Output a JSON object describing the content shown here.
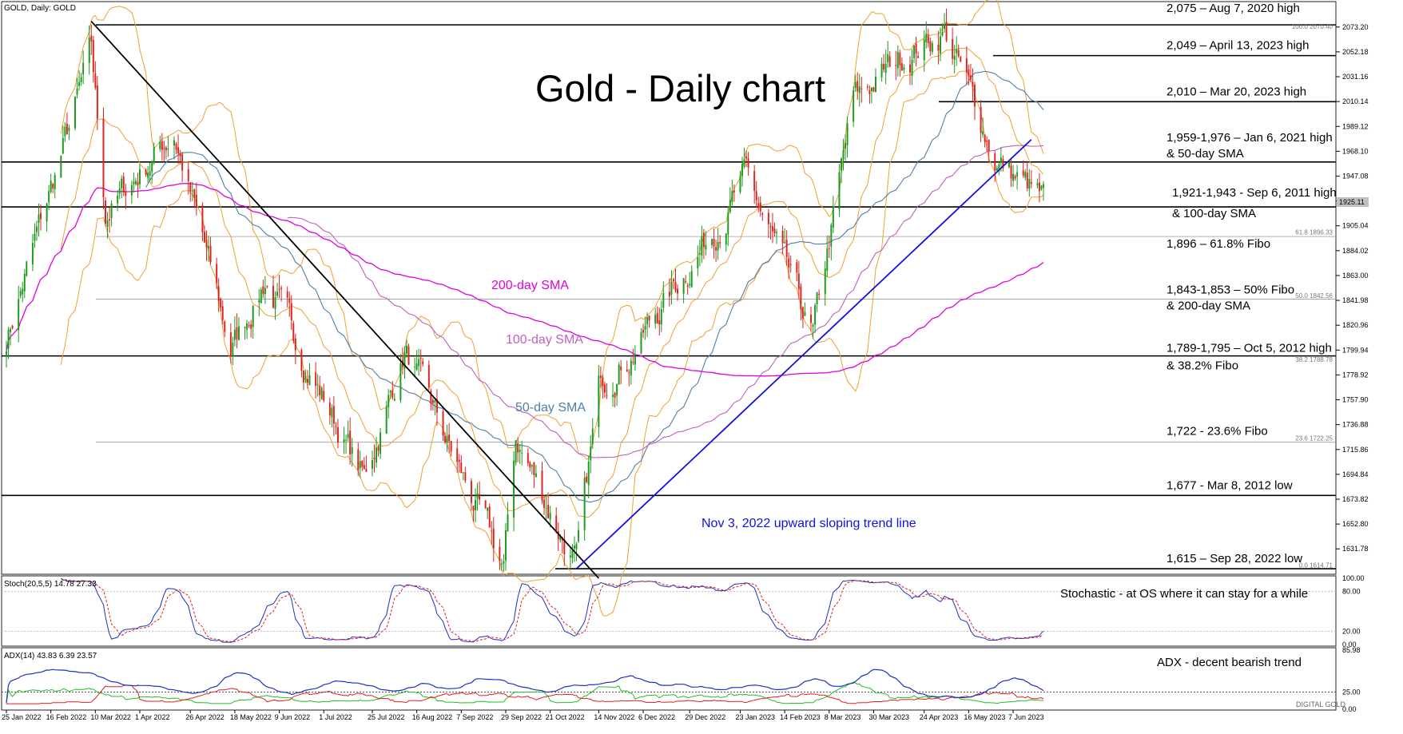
{
  "header": {
    "symbol_label": "GOLD, Daily:  GOLD",
    "title": "Gold - Daily chart"
  },
  "watermark": "DIGITAL GOLD",
  "colors": {
    "bull": "#1a9a1a",
    "bear": "#e0201a",
    "sma50": "#4f7fa8",
    "sma100": "#c060c0",
    "sma200": "#e000e0",
    "bollinger": "#f0a030",
    "downtrend": "#000000",
    "uptrend": "#1010e0",
    "stoch_main": "#2030c0",
    "stoch_signal": "#e02020",
    "adx": "#2030c0",
    "plus_di": "#20c020",
    "minus_di": "#e02020"
  },
  "levels": [
    {
      "price": 2075,
      "label": "2,075 – Aug 7, 2020 high"
    },
    {
      "price": 2049,
      "label": "2,049 – April 13, 2023 high"
    },
    {
      "price": 2010,
      "label": "2,010 – Mar 20, 2023 high"
    },
    {
      "price": 1959,
      "label": "1,959-1,976 – Jan 6, 2021 high",
      "label2": "& 50-day SMA"
    },
    {
      "price": 1921,
      "label": "1,921-1,943 - Sep 6, 2011 high",
      "label2": "& 100-day SMA"
    },
    {
      "price": 1896,
      "label": "1,896 – 61.8% Fibo"
    },
    {
      "price": 1843,
      "label": "1,843-1,853 – 50% Fibo",
      "label2": "& 200-day SMA"
    },
    {
      "price": 1795,
      "label": "1,789-1,795 – Oct 5, 2012 high",
      "label2": "& 38.2% Fibo"
    },
    {
      "price": 1722,
      "label": "1,722 - 23.6% Fibo"
    },
    {
      "price": 1677,
      "label": "1,677 - Mar 8, 2012 low"
    },
    {
      "price": 1615,
      "label": "1,615 – Sep 28, 2022 low"
    }
  ],
  "fibo_labels": [
    {
      "price": 2070.4,
      "label": "100.0 2070.40"
    },
    {
      "price": 1896.33,
      "label": "61.8 1896.33"
    },
    {
      "price": 1842.56,
      "label": "50.0 1842.56"
    },
    {
      "price": 1788.78,
      "label": "38.2 1788.78"
    },
    {
      "price": 1722.25,
      "label": "23.6 1722.25"
    },
    {
      "price": 1614.71,
      "label": "0.0 1614.71"
    }
  ],
  "annotations": {
    "sma200": "200-day SMA",
    "sma100": "100-day SMA",
    "sma50": "50-day SMA",
    "uptrend": "Nov 3, 2022 upward sloping trend line",
    "stoch": "Stochastic - at OS where it can stay for a while",
    "adx": "ADX - decent bearish trend"
  },
  "price_axis": {
    "ticks": [
      "2073.20",
      "2052.18",
      "2031.16",
      "2010.14",
      "1989.12",
      "1968.10",
      "1947.08",
      "1926.06",
      "1905.04",
      "1884.02",
      "1863.00",
      "1841.98",
      "1820.96",
      "1799.94",
      "1778.92",
      "1757.90",
      "1736.88",
      "1715.86",
      "1694.84",
      "1673.82",
      "1652.80",
      "1631.78"
    ],
    "current": "1925.11"
  },
  "stoch_panel": {
    "label": "Stoch(20,5,5) 14.78 27.33",
    "ticks": [
      "100.00",
      "80.00",
      "20.00",
      "0.00"
    ],
    "main_last": 14.78,
    "signal_last": 27.33
  },
  "adx_panel": {
    "label": "ADX(14) 43.83 6.39 23.57",
    "ticks": [
      "85.98",
      "25.00",
      "0.00"
    ],
    "adx_last": 43.83,
    "plus_di_last": 6.39,
    "minus_di_last": 23.57
  },
  "date_axis": [
    "25 Jan 2022",
    "16 Feb 2022",
    "10 Mar 2022",
    "1 Apr 2022",
    "26 Apr 2022",
    "18 May 2022",
    "9 Jun 2022",
    "1 Jul 2022",
    "25 Jul 2022",
    "16 Aug 2022",
    "7 Sep 2022",
    "29 Sep 2022",
    "21 Oct 2022",
    "14 Nov 2022",
    "6 Dec 2022",
    "29 Dec 2022",
    "23 Jan 2023",
    "14 Feb 2023",
    "8 Mar 2023",
    "30 Mar 2023",
    "24 Apr 2023",
    "16 May 2023",
    "7 Jun 2023"
  ],
  "chart_data": {
    "type": "candlestick",
    "title": "Gold - Daily chart",
    "ylim": [
      1611,
      2094
    ],
    "x_range": [
      "25 Jan 2022",
      "22 Jun 2023"
    ],
    "grid": false,
    "anchor_prices": [
      {
        "date": "25 Jan 2022",
        "price": 1810
      },
      {
        "date": "8 Mar 2022",
        "price": 2050
      },
      {
        "date": "15 Mar 2022",
        "price": 1915
      },
      {
        "date": "18 Apr 2022",
        "price": 1985
      },
      {
        "date": "16 May 2022",
        "price": 1800
      },
      {
        "date": "2 Jun 2022",
        "price": 1860
      },
      {
        "date": "21 Jul 2022",
        "price": 1690
      },
      {
        "date": "10 Aug 2022",
        "price": 1800
      },
      {
        "date": "28 Sep 2022",
        "price": 1615
      },
      {
        "date": "4 Oct 2022",
        "price": 1725
      },
      {
        "date": "3 Nov 2022",
        "price": 1618
      },
      {
        "date": "15 Nov 2022",
        "price": 1775
      },
      {
        "date": "1 Dec 2022",
        "price": 1800
      },
      {
        "date": "26 Jan 2023",
        "price": 1945
      },
      {
        "date": "28 Feb 2023",
        "price": 1810
      },
      {
        "date": "20 Mar 2023",
        "price": 2010
      },
      {
        "date": "13 Apr 2023",
        "price": 2049
      },
      {
        "date": "4 May 2023",
        "price": 2070
      },
      {
        "date": "30 May 2023",
        "price": 1960
      },
      {
        "date": "22 Jun 2023",
        "price": 1925
      }
    ]
  }
}
